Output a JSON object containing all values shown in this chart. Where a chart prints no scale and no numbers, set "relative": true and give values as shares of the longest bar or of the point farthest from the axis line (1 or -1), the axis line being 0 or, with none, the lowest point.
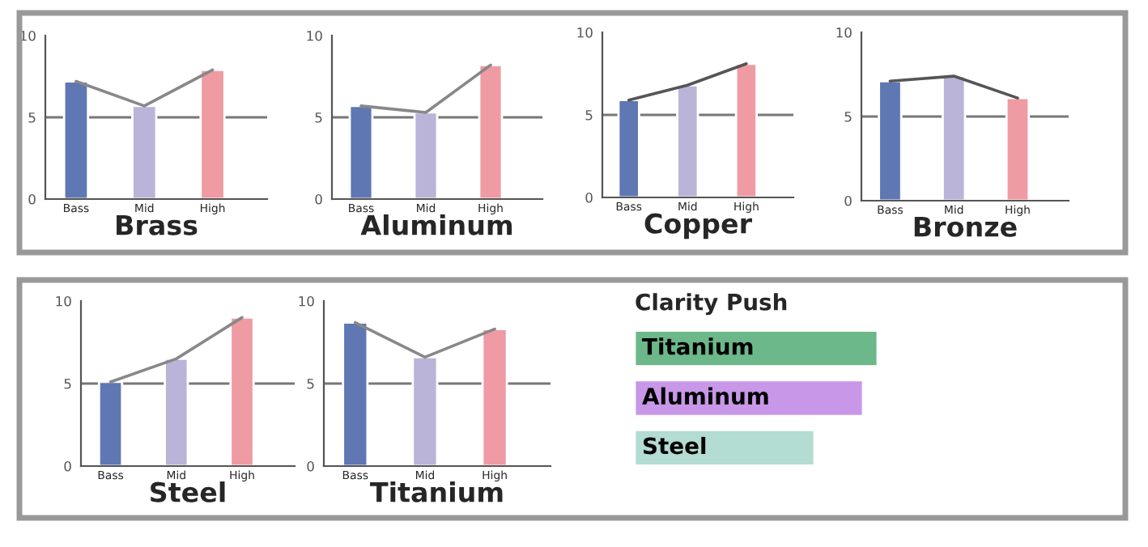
{
  "chart_data": [
    {
      "type": "bar",
      "xlabel": "Brass",
      "categories": [
        "Bass",
        "Mid",
        "High"
      ],
      "ylim": [
        0,
        10
      ],
      "yticks": [
        0,
        5,
        10
      ],
      "ref_lines": [
        {
          "axis": "y",
          "value": 5,
          "color": "#777777"
        }
      ],
      "series": [
        {
          "type": "bar",
          "colors": [
            "#5f77b3",
            "#b9b4d8",
            "#ef9ba3"
          ],
          "values": [
            7.2,
            5.7,
            7.9
          ]
        },
        {
          "type": "line",
          "color": "#888888",
          "values": [
            7.2,
            5.7,
            7.9
          ]
        }
      ]
    },
    {
      "type": "bar",
      "xlabel": "Aluminum",
      "categories": [
        "Bass",
        "Mid",
        "High"
      ],
      "ylim": [
        0,
        10
      ],
      "yticks": [
        0,
        5,
        10
      ],
      "ref_lines": [
        {
          "axis": "y",
          "value": 5,
          "color": "#777777"
        }
      ],
      "series": [
        {
          "type": "bar",
          "colors": [
            "#5f77b3",
            "#b9b4d8",
            "#ef9ba3"
          ],
          "values": [
            5.7,
            5.3,
            8.2
          ]
        },
        {
          "type": "line",
          "color": "#888888",
          "values": [
            5.7,
            5.3,
            8.2
          ]
        }
      ]
    },
    {
      "type": "bar",
      "xlabel": "Copper",
      "categories": [
        "Bass",
        "Mid",
        "High"
      ],
      "ylim": [
        0,
        10
      ],
      "yticks": [
        0,
        5,
        10
      ],
      "ref_lines": [
        {
          "axis": "y",
          "value": 5,
          "color": "#777777"
        }
      ],
      "series": [
        {
          "type": "bar",
          "colors": [
            "#5f77b3",
            "#b9b4d8",
            "#ef9ba3"
          ],
          "values": [
            5.9,
            6.8,
            8.1
          ]
        },
        {
          "type": "line",
          "color": "#555555",
          "values": [
            5.9,
            6.8,
            8.1
          ]
        }
      ]
    },
    {
      "type": "bar",
      "xlabel": "Bronze",
      "categories": [
        "Bass",
        "Mid",
        "High"
      ],
      "ylim": [
        0,
        10
      ],
      "yticks": [
        0,
        5,
        10
      ],
      "ref_lines": [
        {
          "axis": "y",
          "value": 5,
          "color": "#777777"
        }
      ],
      "series": [
        {
          "type": "bar",
          "colors": [
            "#5f77b3",
            "#b9b4d8",
            "#ef9ba3"
          ],
          "values": [
            7.1,
            7.4,
            6.1
          ]
        },
        {
          "type": "line",
          "color": "#555555",
          "values": [
            7.1,
            7.4,
            6.1
          ]
        }
      ]
    },
    {
      "type": "bar",
      "xlabel": "Steel",
      "categories": [
        "Bass",
        "Mid",
        "High"
      ],
      "ylim": [
        0,
        10
      ],
      "yticks": [
        0,
        5,
        10
      ],
      "ref_lines": [
        {
          "axis": "y",
          "value": 5,
          "color": "#777777"
        }
      ],
      "series": [
        {
          "type": "bar",
          "colors": [
            "#5f77b3",
            "#b9b4d8",
            "#ef9ba3"
          ],
          "values": [
            5.1,
            6.5,
            9.0
          ]
        },
        {
          "type": "line",
          "color": "#888888",
          "values": [
            5.1,
            6.5,
            9.0
          ]
        }
      ]
    },
    {
      "type": "bar",
      "xlabel": "Titanium",
      "categories": [
        "Bass",
        "Mid",
        "High"
      ],
      "ylim": [
        0,
        10
      ],
      "yticks": [
        0,
        5,
        10
      ],
      "ref_lines": [
        {
          "axis": "y",
          "value": 5,
          "color": "#777777"
        }
      ],
      "series": [
        {
          "type": "bar",
          "colors": [
            "#5f77b3",
            "#b9b4d8",
            "#ef9ba3"
          ],
          "values": [
            8.7,
            6.6,
            8.3
          ]
        },
        {
          "type": "line",
          "color": "#888888",
          "values": [
            8.7,
            6.6,
            8.3
          ]
        }
      ]
    },
    {
      "type": "bar",
      "title": "Clarity Push",
      "orientation": "horizontal",
      "relative": true,
      "categories": [
        "Titanium",
        "Aluminum",
        "Steel"
      ],
      "colors": [
        "#6db88a",
        "#c897e8",
        "#b3dcd3"
      ],
      "values": [
        1,
        0.94,
        0.74
      ]
    }
  ]
}
